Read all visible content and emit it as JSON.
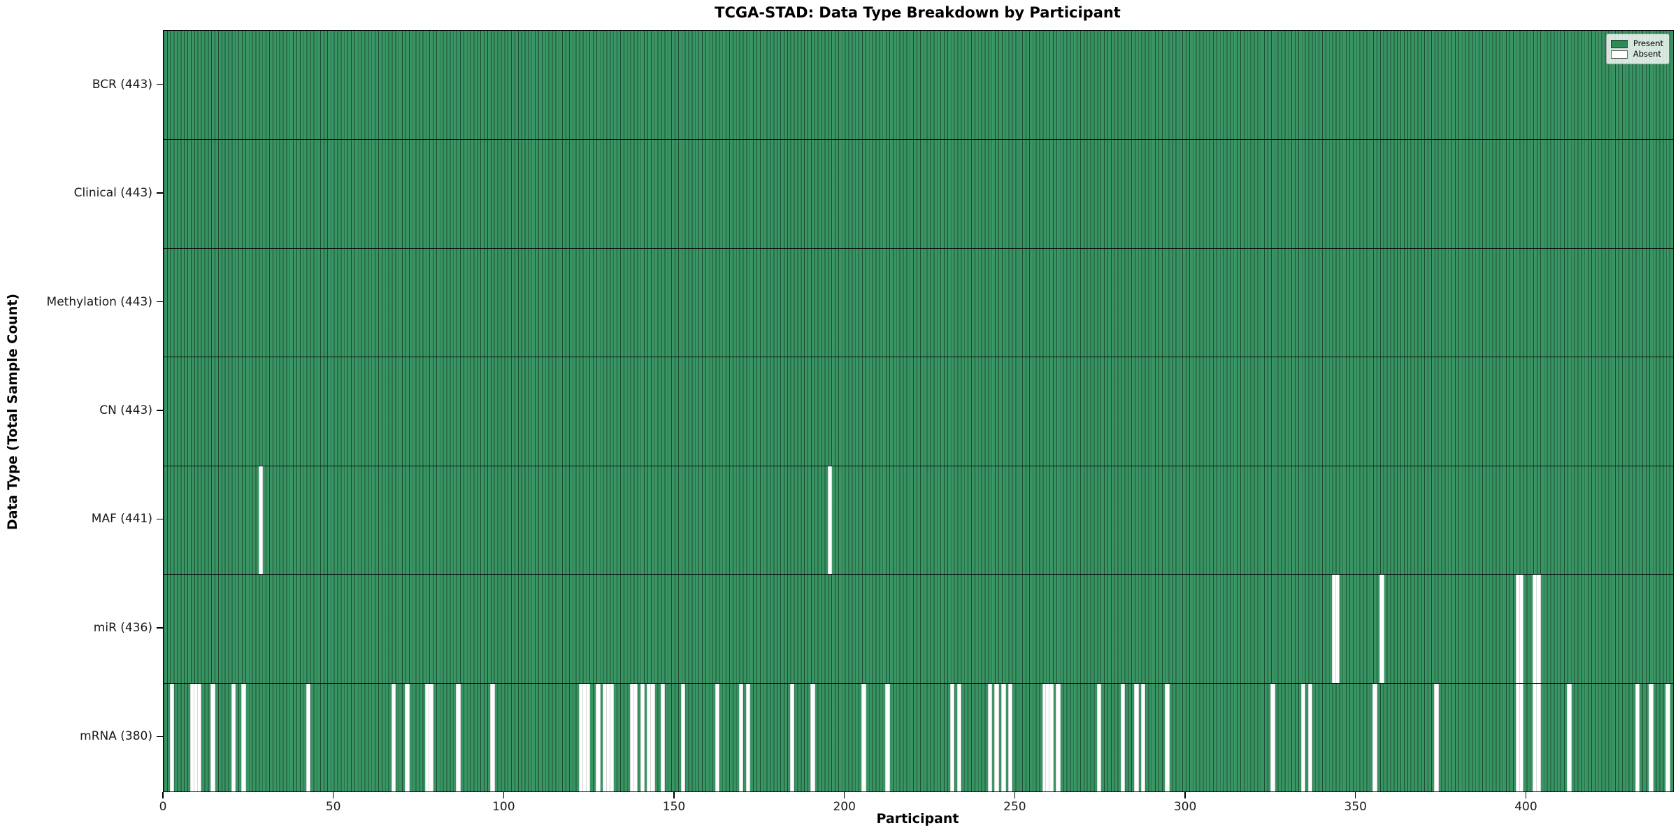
{
  "title": "TCGA-STAD: Data Type Breakdown by Participant",
  "xlabel": "Participant",
  "ylabel": "Data Type (Total Sample Count)",
  "legend": {
    "present_label": "Present",
    "absent_label": "Absent"
  },
  "colors": {
    "present": "#2E8B57",
    "absent": "#FFFFFF",
    "cell_edge": "#1a3d28",
    "row_separator": "#000000",
    "figure_background": "#FFFFFF"
  },
  "x_ticks": [
    0,
    50,
    100,
    150,
    200,
    250,
    300,
    350,
    400
  ],
  "chart_data": {
    "type": "heatmap",
    "title": "TCGA-STAD: Data Type Breakdown by Participant",
    "xlabel": "Participant",
    "ylabel": "Data Type (Total Sample Count)",
    "x_range": [
      0,
      443
    ],
    "n_participants": 443,
    "grid": false,
    "legend_position": "upper right",
    "legend_entries": [
      "Present",
      "Absent"
    ],
    "rows": [
      {
        "data_type": "BCR",
        "label": "BCR (443)",
        "present_count": 443,
        "absent_count": 0,
        "absent_participants": []
      },
      {
        "data_type": "Clinical",
        "label": "Clinical (443)",
        "present_count": 443,
        "absent_count": 0,
        "absent_participants": []
      },
      {
        "data_type": "Methylation",
        "label": "Methylation (443)",
        "present_count": 443,
        "absent_count": 0,
        "absent_participants": []
      },
      {
        "data_type": "CN",
        "label": "CN (443)",
        "present_count": 443,
        "absent_count": 0,
        "absent_participants": []
      },
      {
        "data_type": "MAF",
        "label": "MAF (441)",
        "present_count": 441,
        "absent_count": 2,
        "absent_participants": [
          28,
          195
        ]
      },
      {
        "data_type": "miR",
        "label": "miR (436)",
        "present_count": 436,
        "absent_count": 7,
        "absent_participants": [
          343,
          344,
          357,
          397,
          398,
          402,
          403
        ]
      },
      {
        "data_type": "mRNA",
        "label": "mRNA (380)",
        "present_count": 380,
        "absent_count": 63,
        "absent_participants": [
          2,
          8,
          9,
          10,
          14,
          20,
          23,
          42,
          67,
          71,
          77,
          78,
          86,
          96,
          122,
          123,
          124,
          127,
          129,
          130,
          131,
          137,
          138,
          140,
          142,
          143,
          146,
          152,
          162,
          169,
          171,
          184,
          190,
          205,
          212,
          231,
          233,
          242,
          244,
          246,
          248,
          258,
          259,
          260,
          262,
          274,
          281,
          285,
          287,
          294,
          325,
          334,
          336,
          355,
          373,
          397,
          398,
          402,
          403,
          412,
          432,
          436,
          441
        ]
      }
    ]
  }
}
